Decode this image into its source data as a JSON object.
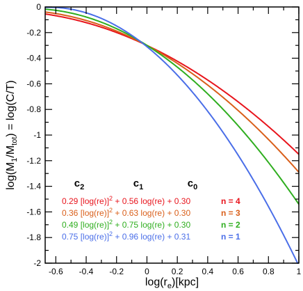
{
  "chart_data": {
    "type": "line",
    "xlim": [
      -0.67,
      1.0
    ],
    "ylim": [
      -2.0,
      0.0
    ],
    "grid": false,
    "xlabel": {
      "pre": "log(r",
      "sub": "e",
      "post": ")[kpc]"
    },
    "ylabel": {
      "p1": "log(M",
      "s1": "1",
      "p2": "/M",
      "s2": "tot",
      "p3": ") = log(C/T)"
    },
    "xticks": [
      {
        "value": -0.6,
        "label": "-0.6"
      },
      {
        "value": -0.4,
        "label": "-0.4"
      },
      {
        "value": -0.2,
        "label": "-0.2"
      },
      {
        "value": 0,
        "label": "0"
      },
      {
        "value": 0.2,
        "label": "0.2"
      },
      {
        "value": 0.4,
        "label": "0.4"
      },
      {
        "value": 0.6,
        "label": "0.6"
      },
      {
        "value": 0.8,
        "label": "0.8"
      },
      {
        "value": 1.0,
        "label": "1"
      }
    ],
    "yticks": [
      {
        "value": 0,
        "label": "0"
      },
      {
        "value": -0.2,
        "label": "-0.2"
      },
      {
        "value": -0.4,
        "label": "-0.4"
      },
      {
        "value": -0.6,
        "label": "-0.6"
      },
      {
        "value": -0.8,
        "label": "-0.8"
      },
      {
        "value": -1.0,
        "label": "-1"
      },
      {
        "value": -1.2,
        "label": "-1.2"
      },
      {
        "value": -1.4,
        "label": "-1.4"
      },
      {
        "value": -1.6,
        "label": "-1.6"
      },
      {
        "value": -1.8,
        "label": "-1.8"
      },
      {
        "value": -2.0,
        "label": "-2"
      }
    ],
    "coefficient_headers": [
      {
        "name": "c2",
        "base": "c",
        "sub": "2"
      },
      {
        "name": "c1",
        "base": "c",
        "sub": "1"
      },
      {
        "name": "c0",
        "base": "c",
        "sub": "0"
      }
    ],
    "series": [
      {
        "name": "n = 4",
        "color": "#e8141c",
        "c2": 0.29,
        "c1": 0.56,
        "c0": 0.3,
        "eq_a": "0.29 [log(re)]",
        "eq_sup": "2",
        "eq_b": " + 0.56 log(re) + 0.30"
      },
      {
        "name": "n = 3",
        "color": "#d95f1a",
        "c2": 0.36,
        "c1": 0.63,
        "c0": 0.3,
        "eq_a": "0.36 [log(re)]",
        "eq_sup": "2",
        "eq_b": " + 0.63 log(re) + 0.30"
      },
      {
        "name": "n = 2",
        "color": "#2fae1f",
        "c2": 0.49,
        "c1": 0.75,
        "c0": 0.3,
        "eq_a": "0.49 [log(re)]",
        "eq_sup": "2",
        "eq_b": " + 0.75 log(re) + 0.30"
      },
      {
        "name": "n = 1",
        "color": "#4a6ee8",
        "c2": 0.75,
        "c1": 0.96,
        "c0": 0.31,
        "eq_a": "0.75 [log(re)]",
        "eq_sup": "2",
        "eq_b": " + 0.96 log(re) + 0.31"
      }
    ]
  }
}
